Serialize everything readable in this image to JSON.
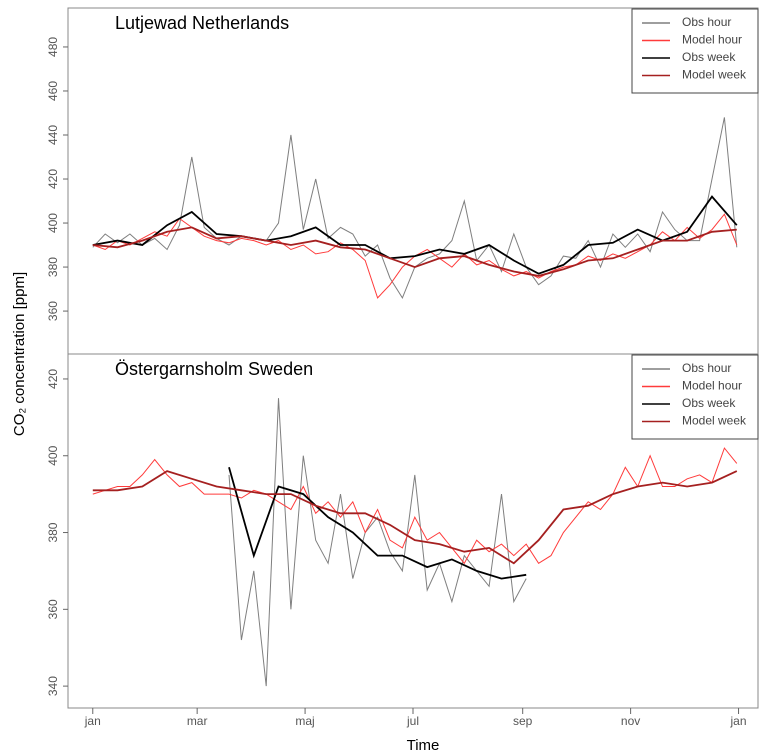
{
  "chart_data": [
    {
      "type": "line",
      "title": "Lutjewad  Netherlands",
      "y_label": "CO₂ concentration [ppm]",
      "xlim": [
        -14,
        376
      ],
      "ylim": [
        340.5,
        497.7
      ],
      "yticks": [
        360,
        380,
        400,
        420,
        440,
        460,
        480
      ],
      "legend": "top-right",
      "series": [
        {
          "name": "Obs hour",
          "color": "#7f7f7f",
          "x": [
            0,
            7,
            14,
            21,
            28,
            35,
            42,
            49,
            56,
            63,
            70,
            77,
            84,
            91,
            98,
            105,
            112,
            119,
            126,
            133,
            140,
            147,
            154,
            161,
            168,
            175,
            182,
            189,
            196,
            203,
            210,
            217,
            224,
            231,
            238,
            245,
            252,
            259,
            266,
            273,
            280,
            287,
            294,
            301,
            308,
            315,
            322,
            329,
            336,
            343,
            350,
            357,
            364
          ],
          "values": [
            389,
            395,
            391,
            395,
            390,
            393,
            388,
            399,
            430,
            398,
            393,
            390,
            394,
            393,
            392,
            400,
            440,
            397,
            420,
            393,
            398,
            395,
            385,
            390,
            375,
            366,
            380,
            384,
            386,
            392,
            410,
            383,
            390,
            378,
            395,
            380,
            372,
            376,
            385,
            384,
            392,
            380,
            395,
            389,
            395,
            387,
            405,
            397,
            392,
            392,
            420,
            448,
            389
          ]
        },
        {
          "name": "Model hour",
          "color": "#ff3b3b",
          "x": [
            0,
            7,
            14,
            21,
            28,
            35,
            42,
            49,
            56,
            63,
            70,
            77,
            84,
            91,
            98,
            105,
            112,
            119,
            126,
            133,
            140,
            147,
            154,
            161,
            168,
            175,
            182,
            189,
            196,
            203,
            210,
            217,
            224,
            231,
            238,
            245,
            252,
            259,
            266,
            273,
            280,
            287,
            294,
            301,
            308,
            315,
            322,
            329,
            336,
            343,
            350,
            357,
            364
          ],
          "values": [
            390,
            388,
            392,
            390,
            393,
            396,
            394,
            402,
            398,
            394,
            392,
            391,
            393,
            392,
            390,
            392,
            388,
            390,
            386,
            387,
            391,
            388,
            383,
            366,
            372,
            380,
            385,
            388,
            384,
            380,
            386,
            381,
            383,
            379,
            376,
            378,
            375,
            378,
            380,
            381,
            385,
            383,
            386,
            384,
            387,
            390,
            396,
            392,
            398,
            393,
            397,
            404,
            390
          ]
        },
        {
          "name": "Obs week",
          "color": "#000000",
          "x": [
            0,
            14,
            28,
            42,
            56,
            70,
            84,
            98,
            112,
            126,
            140,
            154,
            168,
            182,
            196,
            210,
            224,
            238,
            252,
            266,
            280,
            294,
            308,
            322,
            336,
            350,
            364
          ],
          "values": [
            390,
            392,
            390,
            399,
            405,
            395,
            394,
            392,
            394,
            398,
            390,
            390,
            384,
            385,
            388,
            386,
            390,
            383,
            377,
            381,
            390,
            391,
            397,
            392,
            396,
            412,
            399
          ]
        },
        {
          "name": "Model week",
          "color": "#a52020",
          "x": [
            0,
            14,
            28,
            42,
            56,
            70,
            84,
            98,
            112,
            126,
            140,
            154,
            168,
            182,
            196,
            210,
            224,
            238,
            252,
            266,
            280,
            294,
            308,
            322,
            336,
            350,
            364
          ],
          "values": [
            390,
            389,
            392,
            396,
            398,
            393,
            394,
            392,
            390,
            392,
            389,
            388,
            384,
            380,
            384,
            385,
            381,
            378,
            376,
            379,
            383,
            384,
            388,
            392,
            392,
            396,
            397
          ]
        }
      ]
    },
    {
      "type": "line",
      "title": "Östergarnsholm Sweden",
      "x_label": "Time",
      "xlim": [
        -14,
        376
      ],
      "ylim": [
        334.3,
        426.5
      ],
      "yticks": [
        340,
        360,
        380,
        400,
        420
      ],
      "legend": "top-right",
      "xticks": [
        {
          "value": 0,
          "label": "jan"
        },
        {
          "value": 59,
          "label": "mar"
        },
        {
          "value": 120,
          "label": "maj"
        },
        {
          "value": 181,
          "label": "jul"
        },
        {
          "value": 243,
          "label": "sep"
        },
        {
          "value": 304,
          "label": "nov"
        },
        {
          "value": 365,
          "label": "jan"
        }
      ],
      "series": [
        {
          "name": "Obs hour",
          "color": "#7f7f7f",
          "x": [
            77,
            84,
            91,
            98,
            105,
            112,
            119,
            126,
            133,
            140,
            147,
            154,
            161,
            168,
            175,
            182,
            189,
            196,
            203,
            210,
            217,
            224,
            231,
            238,
            245
          ],
          "values": [
            395,
            352,
            370,
            340,
            415,
            360,
            400,
            378,
            372,
            390,
            368,
            380,
            384,
            375,
            370,
            395,
            365,
            372,
            362,
            374,
            370,
            366,
            390,
            362,
            368
          ]
        },
        {
          "name": "Model hour",
          "color": "#ff3b3b",
          "x": [
            0,
            7,
            14,
            21,
            28,
            35,
            42,
            49,
            56,
            63,
            70,
            77,
            84,
            91,
            98,
            105,
            112,
            119,
            126,
            133,
            140,
            147,
            154,
            161,
            168,
            175,
            182,
            189,
            196,
            203,
            210,
            217,
            224,
            231,
            238,
            245,
            252,
            259,
            266,
            273,
            280,
            287,
            294,
            301,
            308,
            315,
            322,
            329,
            336,
            343,
            350,
            357,
            364
          ],
          "values": [
            390,
            391,
            392,
            392,
            395,
            399,
            395,
            392,
            393,
            390,
            390,
            390,
            389,
            391,
            390,
            388,
            386,
            392,
            385,
            388,
            384,
            388,
            380,
            386,
            378,
            376,
            384,
            378,
            380,
            376,
            372,
            378,
            375,
            377,
            374,
            377,
            372,
            374,
            380,
            384,
            388,
            386,
            390,
            397,
            392,
            400,
            392,
            392,
            394,
            395,
            393,
            402,
            398
          ]
        },
        {
          "name": "Obs week",
          "color": "#000000",
          "x": [
            77,
            91,
            105,
            119,
            133,
            147,
            161,
            175,
            189,
            203,
            217,
            231,
            245
          ],
          "values": [
            397,
            374,
            392,
            390,
            384,
            380,
            374,
            374,
            371,
            373,
            370,
            368,
            369
          ]
        },
        {
          "name": "Model week",
          "color": "#a52020",
          "x": [
            0,
            14,
            28,
            42,
            56,
            70,
            84,
            98,
            112,
            126,
            140,
            154,
            168,
            182,
            196,
            210,
            224,
            238,
            252,
            266,
            280,
            294,
            308,
            322,
            336,
            350,
            364
          ],
          "values": [
            391,
            391,
            392,
            396,
            394,
            392,
            391,
            390,
            390,
            387,
            385,
            385,
            382,
            378,
            377,
            375,
            376,
            372,
            378,
            386,
            387,
            390,
            392,
            393,
            392,
            393,
            396
          ]
        }
      ]
    }
  ]
}
